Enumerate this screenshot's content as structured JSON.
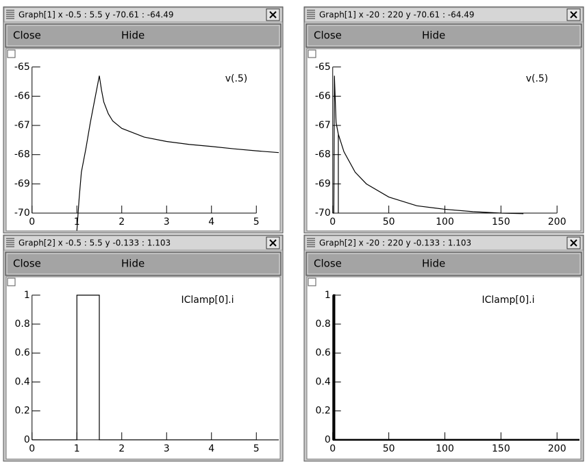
{
  "windows": [
    {
      "title": "Graph[1]  x -0.5 : 5.5  y -70.61 : -64.49",
      "buttons": [
        "Close",
        "Hide"
      ]
    },
    {
      "title": "Graph[1]  x -20 : 220  y -70.61 : -64.49",
      "buttons": [
        "Close",
        "Hide"
      ]
    },
    {
      "title": "Graph[2]  x -0.5 : 5.5  y -0.133 : 1.103",
      "buttons": [
        "Close",
        "Hide"
      ]
    },
    {
      "title": "Graph[2]  x -20 : 220  y -0.133 : 1.103",
      "buttons": [
        "Close",
        "Hide"
      ]
    }
  ],
  "chart_data": [
    {
      "type": "line",
      "xlim": [
        -0.5,
        5.5
      ],
      "ylim": [
        -70.61,
        -64.49
      ],
      "xticks": [
        0,
        1,
        2,
        3,
        4,
        5
      ],
      "yticks": [
        -70,
        -69,
        -68,
        -67,
        -66,
        -65
      ],
      "series": [
        {
          "name": "v(.5)",
          "color": "#000000",
          "x": [
            1,
            1.05,
            1.1,
            1.2,
            1.3,
            1.4,
            1.45,
            1.5,
            1.55,
            1.6,
            1.7,
            1.8,
            2,
            2.5,
            3,
            3.5,
            4,
            4.5,
            5,
            5.5
          ],
          "values": [
            -70.6,
            -69.5,
            -68.6,
            -67.8,
            -66.9,
            -66.1,
            -65.7,
            -65.3,
            -65.8,
            -66.2,
            -66.6,
            -66.85,
            -67.1,
            -67.4,
            -67.55,
            -67.65,
            -67.72,
            -67.8,
            -67.87,
            -67.93
          ]
        }
      ]
    },
    {
      "type": "line",
      "xlim": [
        -20,
        220
      ],
      "ylim": [
        -70.61,
        -64.49
      ],
      "xticks": [
        0,
        50,
        100,
        150,
        200
      ],
      "yticks": [
        -70,
        -69,
        -68,
        -67,
        -66,
        -65
      ],
      "series": [
        {
          "name": "v(.5)",
          "color": "#000000",
          "x": [
            0,
            1,
            1.5,
            3,
            5,
            5,
            5,
            10,
            20,
            30,
            50,
            75,
            100,
            125,
            150,
            170
          ],
          "values": [
            -70,
            -70,
            -65.3,
            -66.9,
            -67.3,
            -70,
            -67.3,
            -67.9,
            -68.6,
            -69,
            -69.45,
            -69.75,
            -69.87,
            -69.95,
            -70,
            -70.02
          ]
        }
      ]
    },
    {
      "type": "line",
      "xlim": [
        -0.5,
        5.5
      ],
      "ylim": [
        -0.133,
        1.103
      ],
      "xticks": [
        0,
        1,
        2,
        3,
        4,
        5
      ],
      "yticks": [
        0,
        0.2,
        0.4,
        0.6,
        0.8,
        1
      ],
      "series": [
        {
          "name": "IClamp[0].i",
          "color": "#000000",
          "x": [
            0,
            1,
            1,
            1.5,
            1.5,
            5.5
          ],
          "values": [
            0,
            0,
            1,
            1,
            0,
            0
          ]
        }
      ]
    },
    {
      "type": "line",
      "xlim": [
        -20,
        220
      ],
      "ylim": [
        -0.133,
        1.103
      ],
      "xticks": [
        0,
        50,
        100,
        150,
        200
      ],
      "yticks": [
        0,
        0.2,
        0.4,
        0.6,
        0.8,
        1
      ],
      "series": [
        {
          "name": "IClamp[0].i",
          "color": "#000000",
          "x": [
            0,
            1,
            1,
            1.5,
            1.5,
            220
          ],
          "values": [
            0,
            0,
            1,
            1,
            0,
            0
          ]
        }
      ]
    }
  ]
}
